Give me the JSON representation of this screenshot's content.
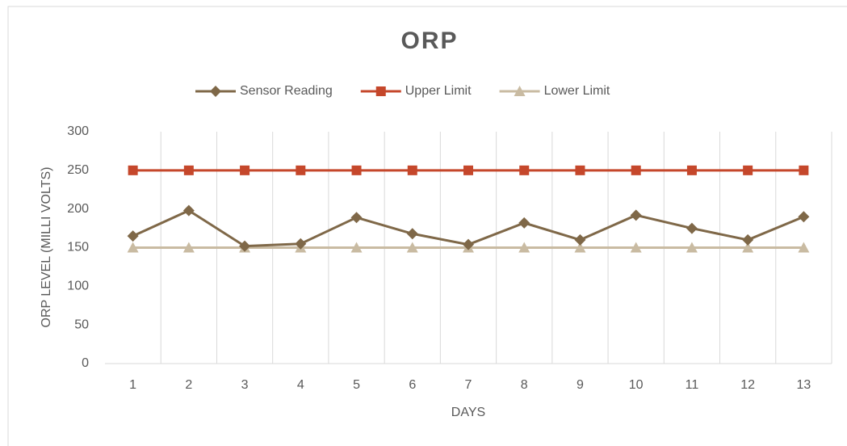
{
  "chart_data": {
    "type": "line",
    "title": "ORP",
    "categories": [
      "1",
      "2",
      "3",
      "4",
      "5",
      "6",
      "7",
      "8",
      "9",
      "10",
      "11",
      "12",
      "13"
    ],
    "series": [
      {
        "name": "Sensor Reading",
        "color": "#7f6848",
        "marker": "diamond",
        "values": [
          165,
          198,
          152,
          155,
          189,
          168,
          154,
          182,
          160,
          192,
          175,
          160,
          190
        ]
      },
      {
        "name": "Upper Limit",
        "color": "#c5472b",
        "marker": "square",
        "values": [
          250,
          250,
          250,
          250,
          250,
          250,
          250,
          250,
          250,
          250,
          250,
          250,
          250
        ]
      },
      {
        "name": "Lower Limit",
        "color": "#c9bba2",
        "marker": "triangle",
        "values": [
          150,
          150,
          150,
          150,
          150,
          150,
          150,
          150,
          150,
          150,
          150,
          150,
          150
        ]
      }
    ],
    "x_label": "DAYS",
    "y_label": "ORP LEVEL (MILLI VOLTS)",
    "ylim": [
      0,
      300
    ],
    "yticks": [
      0,
      50,
      100,
      150,
      200,
      250,
      300
    ],
    "grid": true,
    "legend": "top"
  }
}
